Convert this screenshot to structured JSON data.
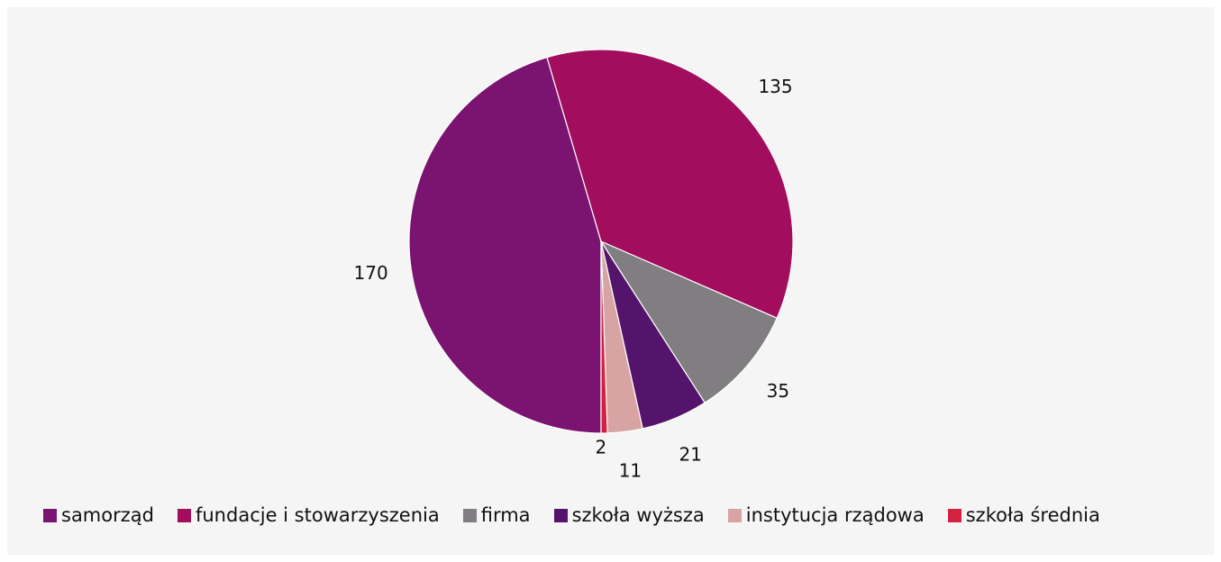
{
  "chart_data": {
    "type": "pie",
    "categories": [
      "samorząd",
      "fundacje i stowarzyszenia",
      "firma",
      "szkoła wyższa",
      "instytucja rządowa",
      "szkoła średnia"
    ],
    "values": [
      170,
      135,
      35,
      21,
      11,
      2
    ],
    "colors": [
      "#7b1370",
      "#a20d5e",
      "#807e80",
      "#54146b",
      "#d8a3a3",
      "#d4213f"
    ],
    "legend": "bottom"
  }
}
